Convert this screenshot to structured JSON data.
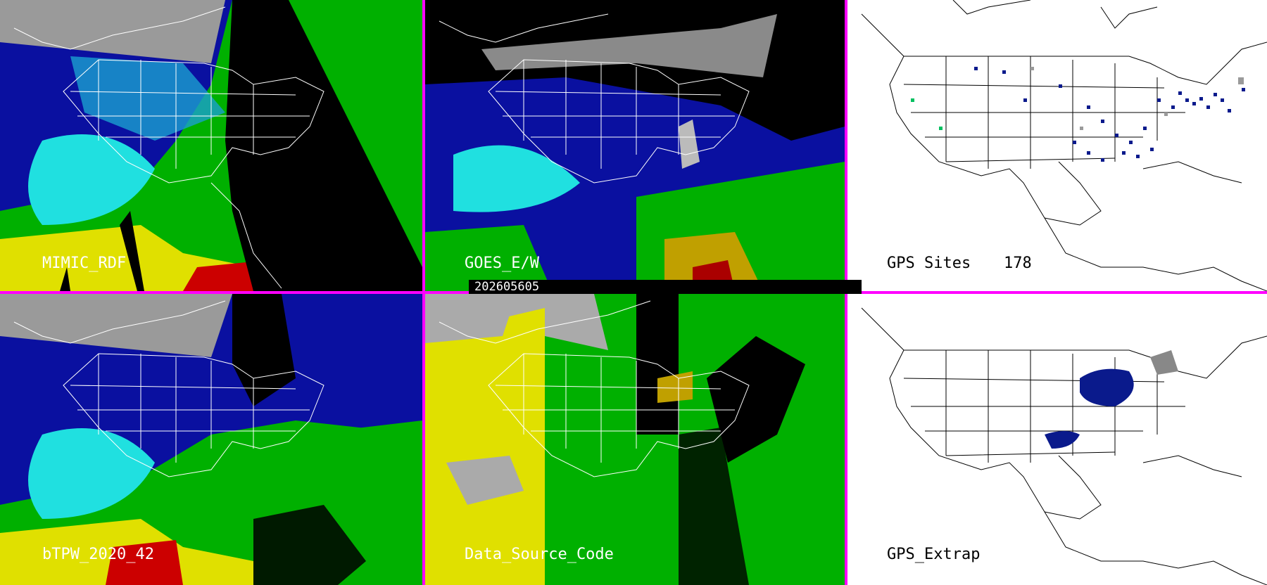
{
  "panels": {
    "p1": {
      "label": "MIMIC_RDF"
    },
    "p2": {
      "label": "GOES_E/W"
    },
    "p3": {
      "label": "GPS Sites",
      "count": "178"
    },
    "p4": {
      "label": "bTPW_2020_42"
    },
    "p5": {
      "label": "Data_Source_Code"
    },
    "p6": {
      "label": "GPS_Extrap"
    }
  },
  "timestamp": "202605605",
  "colors": {
    "separator": "#ff00ff",
    "tpw_low": "#0000a0",
    "tpw_mid": "#00e0e0",
    "tpw_high": "#00cc00",
    "tpw_higher": "#e0e000",
    "tpw_max": "#cc0000",
    "gps_site": "#0a1a8c"
  }
}
